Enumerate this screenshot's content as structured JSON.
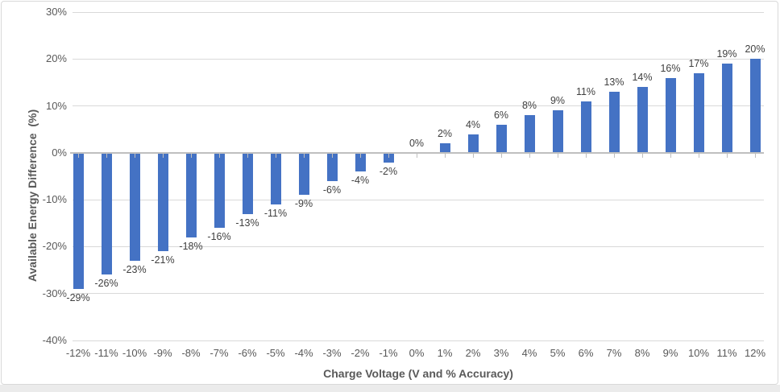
{
  "chart_data": {
    "type": "bar",
    "title": "",
    "xlabel": "Charge Voltage (V and % Accuracy)",
    "ylabel": "Available Energy Difference  (%)",
    "categories": [
      "-12%",
      "-11%",
      "-10%",
      "-9%",
      "-8%",
      "-7%",
      "-6%",
      "-5%",
      "-4%",
      "-3%",
      "-2%",
      "-1%",
      "0%",
      "1%",
      "2%",
      "3%",
      "4%",
      "5%",
      "6%",
      "7%",
      "8%",
      "9%",
      "10%",
      "11%",
      "12%"
    ],
    "values": [
      -29,
      -26,
      -23,
      -21,
      -18,
      -16,
      -13,
      -11,
      -9,
      -6,
      -4,
      -2,
      0,
      2,
      4,
      6,
      8,
      9,
      11,
      13,
      14,
      16,
      17,
      19,
      20
    ],
    "data_labels": [
      "-29%",
      "-26%",
      "-23%",
      "-21%",
      "-18%",
      "-16%",
      "-13%",
      "-11%",
      "-9%",
      "-6%",
      "-4%",
      "-2%",
      "0%",
      "2%",
      "4%",
      "6%",
      "8%",
      "9%",
      "11%",
      "13%",
      "14%",
      "16%",
      "17%",
      "19%",
      "20%"
    ],
    "y_tick_values": [
      30,
      20,
      10,
      0,
      -10,
      -20,
      -30,
      -40
    ],
    "y_tick_labels": [
      "30%",
      "20%",
      "10%",
      "0%",
      "-10%",
      "-20%",
      "-30%",
      "-40%"
    ],
    "ylim": [
      -40,
      30
    ],
    "grid": true,
    "legend": false,
    "colors": {
      "bar": "#4472C4",
      "gridline": "#D9D9D9",
      "axis_line": "#BFBFBF",
      "data_label": "#404040",
      "tick_label": "#595959",
      "axis_title": "#595959",
      "chart_border": "#D9D9D9",
      "plot_background": "#FFFFFF",
      "outside_strip": "#EBEBEB"
    }
  }
}
